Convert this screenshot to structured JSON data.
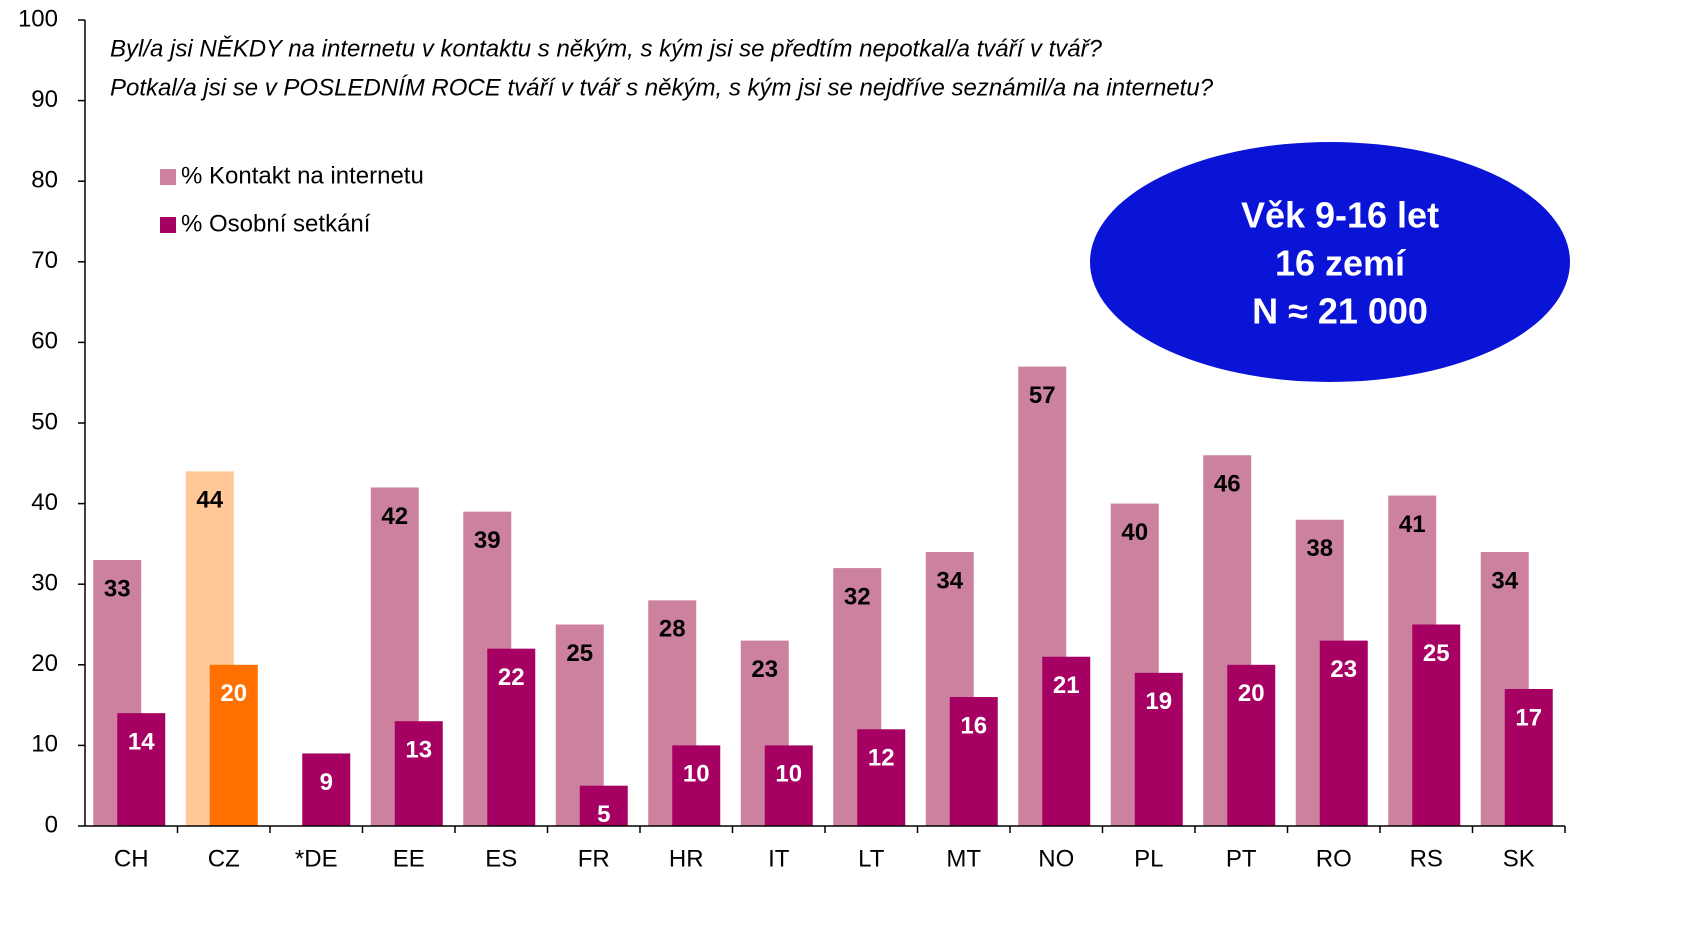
{
  "chart_data": {
    "type": "bar",
    "subtitle": [
      "Byl/a jsi NĚKDY na internetu v kontaktu s někým, s kým jsi se předtím nepotkal/a tváří v tvář?",
      "Potkal/a jsi se v POSLEDNÍM ROCE tváří v tvář s někým, s kým jsi se nejdříve seznámil/a na internetu?"
    ],
    "annotation": [
      "Věk 9-16 let",
      "16 zemí",
      "N ≈ 21 000"
    ],
    "categories": [
      "CH",
      "CZ",
      "*DE",
      "EE",
      "ES",
      "FR",
      "HR",
      "IT",
      "LT",
      "MT",
      "NO",
      "PL",
      "PT",
      "RO",
      "RS",
      "SK"
    ],
    "series": [
      {
        "name": "% Kontakt na internetu",
        "color": "#CC829F",
        "colors": [
          "#CC829F",
          "#FFC896",
          "#CC829F",
          "#CC829F",
          "#CC829F",
          "#CC829F",
          "#CC829F",
          "#CC829F",
          "#CC829F",
          "#CC829F",
          "#CC829F",
          "#CC829F",
          "#CC829F",
          "#CC829F",
          "#CC829F",
          "#CC829F"
        ],
        "values": [
          33,
          44,
          null,
          42,
          39,
          25,
          28,
          23,
          32,
          34,
          57,
          40,
          46,
          38,
          41,
          34
        ]
      },
      {
        "name": "% Osobní setkání",
        "color": "#A50062",
        "colors": [
          "#A50062",
          "#FF7000",
          "#A50062",
          "#A50062",
          "#A50062",
          "#A50062",
          "#A50062",
          "#A50062",
          "#A50062",
          "#A50062",
          "#A50062",
          "#A50062",
          "#A50062",
          "#A50062",
          "#A50062",
          "#A50062"
        ],
        "values": [
          14,
          20,
          9,
          13,
          22,
          5,
          10,
          10,
          12,
          16,
          21,
          19,
          20,
          23,
          25,
          17
        ]
      }
    ],
    "ylim": [
      0,
      100
    ],
    "yticks": [
      0,
      10,
      20,
      30,
      40,
      50,
      60,
      70,
      80,
      90,
      100
    ],
    "grid": false
  }
}
